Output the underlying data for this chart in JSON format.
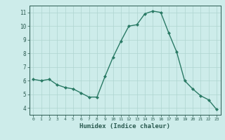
{
  "x": [
    0,
    1,
    2,
    3,
    4,
    5,
    6,
    7,
    8,
    9,
    10,
    11,
    12,
    13,
    14,
    15,
    16,
    17,
    18,
    19,
    20,
    21,
    22,
    23
  ],
  "y": [
    6.1,
    6.0,
    6.1,
    5.7,
    5.5,
    5.4,
    5.1,
    4.8,
    4.8,
    6.3,
    7.7,
    8.9,
    10.0,
    10.1,
    10.9,
    11.1,
    11.0,
    9.5,
    8.1,
    6.0,
    5.4,
    4.9,
    4.6,
    3.9
  ],
  "line_color": "#2a7a65",
  "marker": "D",
  "markersize": 2.0,
  "linewidth": 1.0,
  "bg_color": "#cdecea",
  "grid_color": "#aed4d0",
  "xlabel": "Humidex (Indice chaleur)",
  "xlabel_fontsize": 6.5,
  "tick_color": "#2a5a50",
  "xlim": [
    -0.5,
    23.5
  ],
  "ylim": [
    3.5,
    11.5
  ],
  "yticks": [
    4,
    5,
    6,
    7,
    8,
    9,
    10,
    11
  ],
  "xticks": [
    0,
    1,
    2,
    3,
    4,
    5,
    6,
    7,
    8,
    9,
    10,
    11,
    12,
    13,
    14,
    15,
    16,
    17,
    18,
    19,
    20,
    21,
    22,
    23
  ]
}
